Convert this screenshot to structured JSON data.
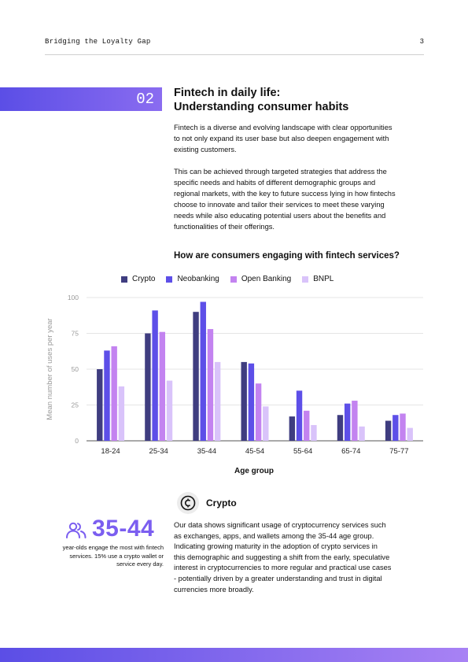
{
  "header": {
    "title": "Bridging the Loyalty Gap",
    "page_number": "3"
  },
  "section": {
    "number": "02",
    "title_line1": "Fintech in daily life:",
    "title_line2": "Understanding consumer habits",
    "paragraph1_lines": [
      "Fintech is a diverse and evolving landscape with clear opportunities",
      "to not only expand its user base but also deepen engagement with",
      "existing customers."
    ],
    "paragraph2_lines": [
      "This can be achieved through targeted strategies that address the",
      "specific needs and habits of different demographic groups and",
      "regional markets, with the key to future success lying in how fintechs",
      "choose to innovate and tailor their services to meet these varying",
      "needs while also educating potential users about the benefits and",
      "functionalities of their offerings."
    ]
  },
  "chart_data": {
    "type": "bar",
    "title": "How are consumers engaging with fintech services?",
    "xlabel": "Age group",
    "ylabel": "Mean number of uses per year",
    "categories": [
      "18-24",
      "25-34",
      "35-44",
      "45-54",
      "55-64",
      "65-74",
      "75-77"
    ],
    "ylim": [
      0,
      100
    ],
    "yticks": [
      0,
      25,
      50,
      75,
      100
    ],
    "grid": true,
    "legend_position": "top",
    "series": [
      {
        "name": "Crypto",
        "color": "#3f3d80",
        "values": [
          50,
          75,
          90,
          55,
          17,
          18,
          14
        ]
      },
      {
        "name": "Neobanking",
        "color": "#5d4fe8",
        "values": [
          63,
          91,
          97,
          54,
          35,
          26,
          18
        ]
      },
      {
        "name": "Open Banking",
        "color": "#c383f0",
        "values": [
          66,
          76,
          78,
          40,
          21,
          28,
          19
        ]
      },
      {
        "name": "BNPL",
        "color": "#d9c3fa",
        "values": [
          38,
          42,
          55,
          24,
          11,
          10,
          9
        ]
      }
    ]
  },
  "crypto": {
    "icon": "crypto-coin-icon",
    "heading": "Crypto",
    "lines": [
      "Our data shows significant usage of cryptocurrency services such",
      "as exchanges, apps, and wallets among the 35-44 age group.",
      "Indicating growing maturity in the adoption of crypto services in",
      "this demographic and suggesting a shift from the early, speculative",
      "interest in cryptocurrencies to more regular and practical use cases",
      "- potentially driven by a greater understanding and trust in digital",
      "currencies more broadly."
    ]
  },
  "stat": {
    "icon": "people-icon",
    "value": "35-44",
    "caption_lines": [
      "year-olds engage the most with fintech",
      "services. 15% use a crypto wallet or",
      "service every day."
    ]
  },
  "colors": {
    "accent": "#5b4ee6",
    "accent_light": "#a882f4",
    "stat": "#7b5ef0"
  }
}
